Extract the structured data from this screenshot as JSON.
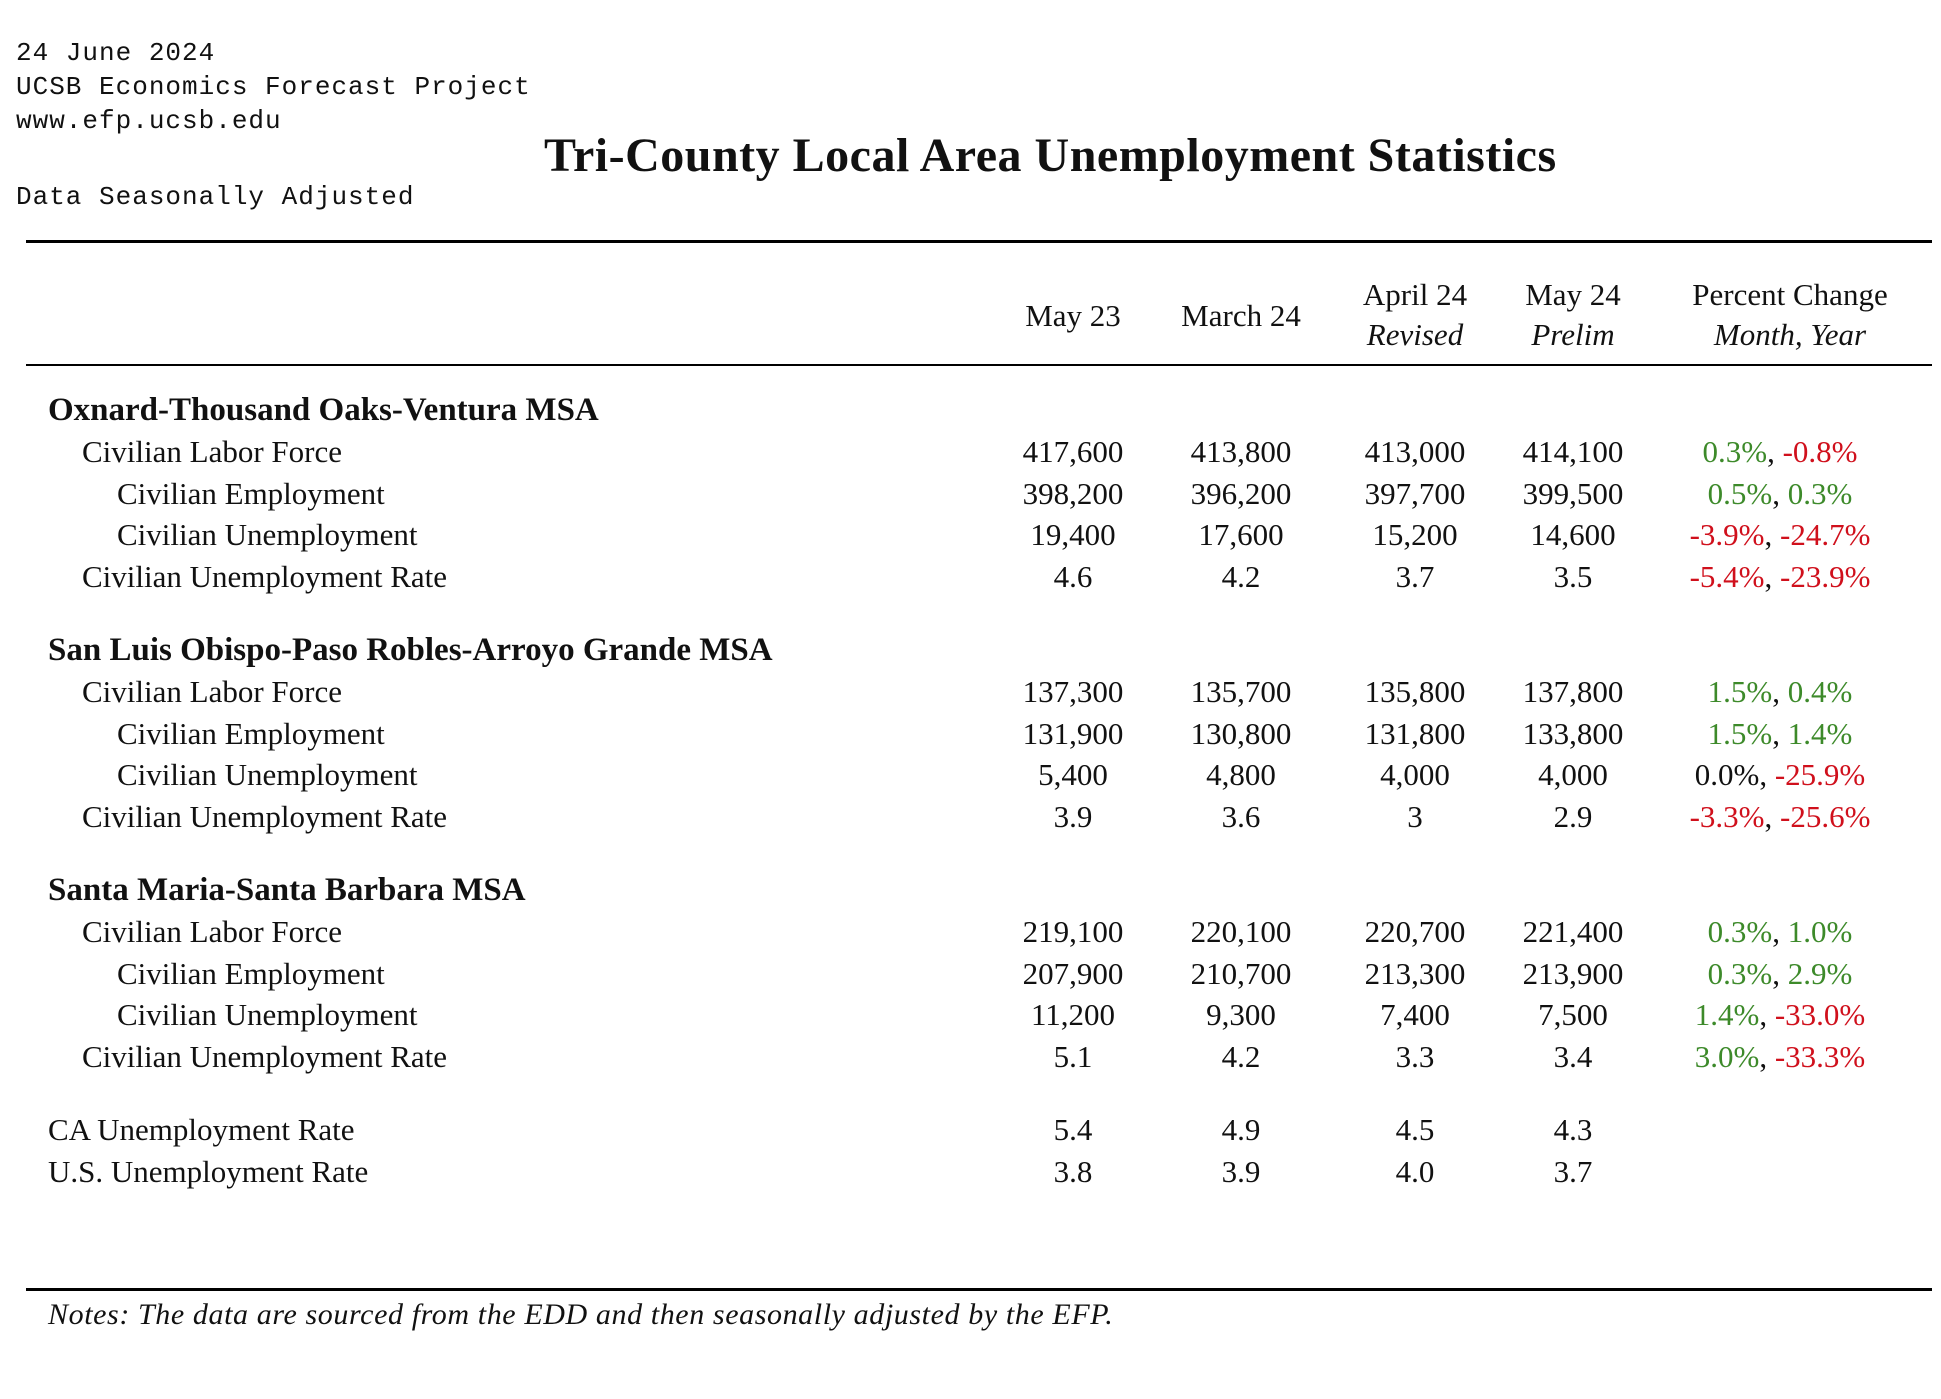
{
  "header": {
    "date": "24 June 2024",
    "org": "UCSB Economics Forecast Project",
    "url": "www.efp.ucsb.edu",
    "adjusted": "Data Seasonally Adjusted",
    "title": "Tri-County Local Area Unemployment Statistics"
  },
  "columns": {
    "c1": {
      "line1": "May 23",
      "line2": ""
    },
    "c2": {
      "line1": "March 24",
      "line2": ""
    },
    "c3": {
      "line1": "April 24",
      "line2": "Revised"
    },
    "c4": {
      "line1": "May 24",
      "line2": "Prelim"
    },
    "pct": {
      "line1": "Percent Change",
      "line2": "Month, Year"
    }
  },
  "colors": {
    "positive": "#3d8a2a",
    "negative": "#d0101c"
  },
  "sections": [
    {
      "title": "Oxnard-Thousand Oaks-Ventura MSA",
      "rows": [
        {
          "label": "Civilian Labor Force",
          "level": 1,
          "values": [
            "417,600",
            "413,800",
            "413,000",
            "414,100"
          ],
          "month": "0.3%",
          "year": "-0.8%"
        },
        {
          "label": "Civilian Employment",
          "level": 2,
          "values": [
            "398,200",
            "396,200",
            "397,700",
            "399,500"
          ],
          "month": "0.5%",
          "year": "0.3%"
        },
        {
          "label": "Civilian Unemployment",
          "level": 2,
          "values": [
            "19,400",
            "17,600",
            "15,200",
            "14,600"
          ],
          "month": "-3.9%",
          "year": "-24.7%"
        },
        {
          "label": "Civilian Unemployment Rate",
          "level": 1,
          "values": [
            "4.6",
            "4.2",
            "3.7",
            "3.5"
          ],
          "month": "-5.4%",
          "year": "-23.9%"
        }
      ]
    },
    {
      "title": "San Luis Obispo-Paso Robles-Arroyo Grande MSA",
      "rows": [
        {
          "label": "Civilian Labor Force",
          "level": 1,
          "values": [
            "137,300",
            "135,700",
            "135,800",
            "137,800"
          ],
          "month": "1.5%",
          "year": "0.4%"
        },
        {
          "label": "Civilian Employment",
          "level": 2,
          "values": [
            "131,900",
            "130,800",
            "131,800",
            "133,800"
          ],
          "month": "1.5%",
          "year": "1.4%"
        },
        {
          "label": "Civilian Unemployment",
          "level": 2,
          "values": [
            "5,400",
            "4,800",
            "4,000",
            "4,000"
          ],
          "month": "0.0%",
          "year": "-25.9%"
        },
        {
          "label": "Civilian Unemployment Rate",
          "level": 1,
          "values": [
            "3.9",
            "3.6",
            "3",
            "2.9"
          ],
          "month": "-3.3%",
          "year": "-25.6%"
        }
      ]
    },
    {
      "title": "Santa Maria-Santa Barbara MSA",
      "rows": [
        {
          "label": "Civilian Labor Force",
          "level": 1,
          "values": [
            "219,100",
            "220,100",
            "220,700",
            "221,400"
          ],
          "month": "0.3%",
          "year": "1.0%"
        },
        {
          "label": "Civilian Employment",
          "level": 2,
          "values": [
            "207,900",
            "210,700",
            "213,300",
            "213,900"
          ],
          "month": "0.3%",
          "year": "2.9%"
        },
        {
          "label": "Civilian Unemployment",
          "level": 2,
          "values": [
            "11,200",
            "9,300",
            "7,400",
            "7,500"
          ],
          "month": "1.4%",
          "year": "-33.0%"
        },
        {
          "label": "Civilian Unemployment Rate",
          "level": 1,
          "values": [
            "5.1",
            "4.2",
            "3.3",
            "3.4"
          ],
          "month": "3.0%",
          "year": "-33.3%"
        }
      ]
    }
  ],
  "summary": [
    {
      "label": "CA Unemployment Rate",
      "values": [
        "5.4",
        "4.9",
        "4.5",
        "4.3"
      ]
    },
    {
      "label": "U.S. Unemployment Rate",
      "values": [
        "3.8",
        "3.9",
        "4.0",
        "3.7"
      ]
    }
  ],
  "notes": "Notes: The data are sourced from the EDD and then seasonally adjusted by the EFP."
}
